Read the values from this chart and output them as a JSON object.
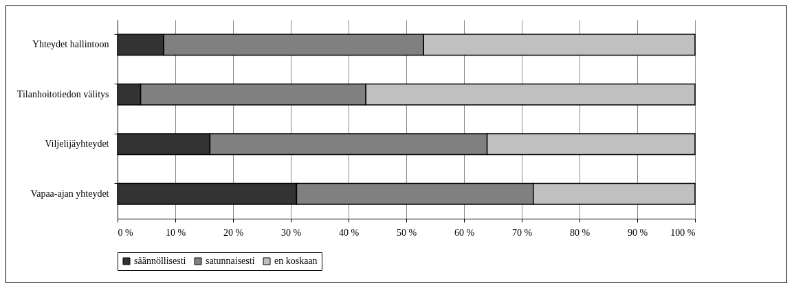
{
  "chart_data": {
    "type": "bar",
    "orientation": "horizontal",
    "stacked": true,
    "categories": [
      "Yhteydet hallintoon",
      "Tilanhoitotiedon välitys",
      "Viljelijäyhteydet",
      "Vapaa-ajan yhteydet"
    ],
    "series": [
      {
        "name": "säännöllisesti",
        "color": "#333333",
        "values": [
          8,
          4,
          16,
          31
        ]
      },
      {
        "name": "satunnaisesti",
        "color": "#808080",
        "values": [
          45,
          39,
          48,
          41
        ]
      },
      {
        "name": "en koskaan",
        "color": "#c0c0c0",
        "values": [
          47,
          57,
          36,
          28
        ]
      }
    ],
    "xlim": [
      0,
      100
    ],
    "xticks": [
      {
        "value": 0,
        "label": "0 %"
      },
      {
        "value": 10,
        "label": "10 %"
      },
      {
        "value": 20,
        "label": "20 %"
      },
      {
        "value": 30,
        "label": "30 %"
      },
      {
        "value": 40,
        "label": "40 %"
      },
      {
        "value": 50,
        "label": "50 %"
      },
      {
        "value": 60,
        "label": "60 %"
      },
      {
        "value": 70,
        "label": "70 %"
      },
      {
        "value": 80,
        "label": "80 %"
      },
      {
        "value": 90,
        "label": "90 %"
      },
      {
        "value": 100,
        "label": "100 %"
      }
    ],
    "grid": "x",
    "legend": "bottom"
  }
}
